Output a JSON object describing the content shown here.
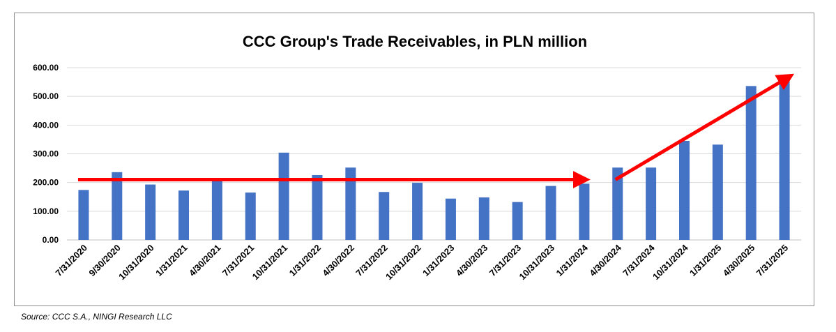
{
  "source_note": "Source: CCC S.A., NINGI Research LLC",
  "colors": {
    "bar": "#4472C4",
    "arrow": "#FF0000",
    "grid": "#D9D9D9",
    "axis": "#BFBFBF"
  },
  "chart_data": {
    "type": "bar",
    "title": "CCC Group's Trade Receivables, in PLN million",
    "xlabel": "",
    "ylabel": "",
    "ylim": [
      0,
      600
    ],
    "yticks": [
      "0.00",
      "100.00",
      "200.00",
      "300.00",
      "400.00",
      "500.00",
      "600.00"
    ],
    "grid": true,
    "categories": [
      "7/31/2020",
      "9/30/2020",
      "10/31/2020",
      "1/31/2021",
      "4/30/2021",
      "7/31/2021",
      "10/31/2021",
      "1/31/2022",
      "4/30/2022",
      "7/31/2022",
      "10/31/2022",
      "1/31/2023",
      "4/30/2023",
      "7/31/2023",
      "10/31/2023",
      "1/31/2024",
      "4/30/2024",
      "7/31/2024",
      "10/31/2024",
      "1/31/2025",
      "4/30/2025",
      "7/31/2025"
    ],
    "values": [
      174,
      236,
      193,
      172,
      210,
      165,
      304,
      226,
      252,
      167,
      199,
      144,
      148,
      132,
      188,
      196,
      252,
      252,
      345,
      332,
      536,
      562
    ],
    "annotations": [
      {
        "type": "arrow",
        "from": {
          "category": "7/31/2020",
          "value": 210
        },
        "to": {
          "category": "1/31/2024",
          "value": 210
        }
      },
      {
        "type": "arrow",
        "from": {
          "category": "4/30/2024",
          "value": 210
        },
        "to": {
          "category": "7/31/2025",
          "value": 570
        }
      }
    ]
  }
}
